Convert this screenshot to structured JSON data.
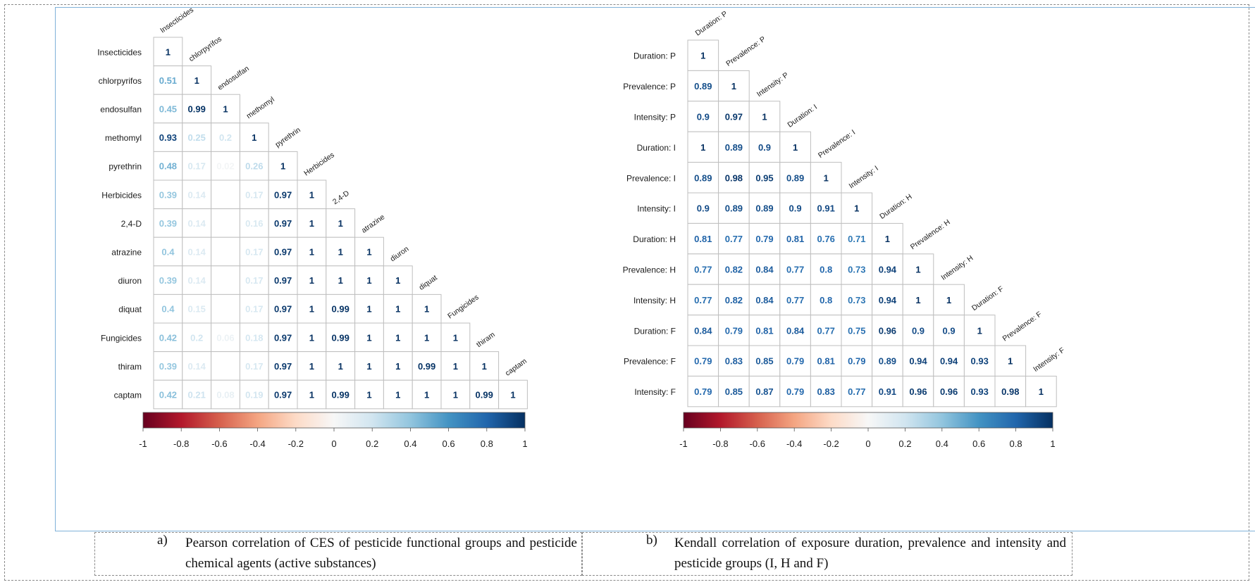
{
  "chart_data": [
    {
      "type": "heatmap",
      "method": "Pearson",
      "shape": "lower-triangle",
      "variables": [
        "Insecticides",
        "chlorpyrifos",
        "endosulfan",
        "methomyl",
        "pyrethrin",
        "Herbicides",
        "2,4-D",
        "atrazine",
        "diuron",
        "diquat",
        "Fungicides",
        "thiram",
        "captam"
      ],
      "matrix": [
        [
          1
        ],
        [
          0.51,
          1
        ],
        [
          0.45,
          0.99,
          1
        ],
        [
          0.93,
          0.25,
          0.2,
          1
        ],
        [
          0.48,
          0.17,
          0.02,
          0.26,
          1
        ],
        [
          0.39,
          0.14,
          null,
          0.17,
          0.97,
          1
        ],
        [
          0.39,
          0.14,
          null,
          0.16,
          0.97,
          1,
          1
        ],
        [
          0.4,
          0.14,
          null,
          0.17,
          0.97,
          1,
          1,
          1
        ],
        [
          0.39,
          0.14,
          null,
          0.17,
          0.97,
          1,
          1,
          1,
          1
        ],
        [
          0.4,
          0.15,
          null,
          0.17,
          0.97,
          1,
          0.99,
          1,
          1,
          1
        ],
        [
          0.42,
          0.2,
          0.06,
          0.18,
          0.97,
          1,
          0.99,
          1,
          1,
          1,
          1
        ],
        [
          0.39,
          0.14,
          null,
          0.17,
          0.97,
          1,
          1,
          1,
          1,
          0.99,
          1,
          1
        ],
        [
          0.42,
          0.21,
          0.08,
          0.19,
          0.97,
          1,
          0.99,
          1,
          1,
          1,
          1,
          0.99,
          1
        ]
      ],
      "colorbar": {
        "ticks": [
          "-1",
          "-0.8",
          "-0.6",
          "-0.4",
          "-0.2",
          "0",
          "0.2",
          "0.4",
          "0.6",
          "0.8",
          "1"
        ],
        "range": [
          -1,
          1
        ]
      },
      "caption_marker": "a)",
      "caption": "Pearson correlation of CES of pesticide functional groups and pesticide chemical agents (active substances)"
    },
    {
      "type": "heatmap",
      "method": "Kendall",
      "shape": "lower-triangle",
      "row_labels": [
        "Duration: P",
        "Prevalence: P",
        "Intensity: P",
        "Duration: I",
        "Prevalence: I",
        "Intensity: I",
        "Duration: H",
        "Prevalence: H",
        "Intensity: H",
        "Duration: F",
        "Prevalence: F",
        "Intensity: F"
      ],
      "column_labels": [
        "Duration: P",
        "Prevalence: P",
        "Intensity: P",
        "Duration: I",
        "Prevalence: I",
        "Intensity: I",
        "Duration: H",
        "Prevalence: H",
        "Intensity: H",
        "Duration: F",
        "Prevalence: F",
        "Intensity: F"
      ],
      "matrix": [
        [
          1
        ],
        [
          0.89,
          1
        ],
        [
          0.9,
          0.97,
          1
        ],
        [
          1,
          0.89,
          0.9,
          1
        ],
        [
          0.89,
          0.98,
          0.95,
          0.89,
          1
        ],
        [
          0.9,
          0.89,
          0.89,
          0.9,
          0.91,
          1
        ],
        [
          0.81,
          0.77,
          0.79,
          0.81,
          0.76,
          0.71,
          1
        ],
        [
          0.77,
          0.82,
          0.84,
          0.77,
          0.8,
          0.73,
          0.94,
          1
        ],
        [
          0.77,
          0.82,
          0.84,
          0.77,
          0.8,
          0.73,
          0.94,
          1,
          1
        ],
        [
          0.84,
          0.79,
          0.81,
          0.84,
          0.77,
          0.75,
          0.96,
          0.9,
          0.9,
          1
        ],
        [
          0.79,
          0.83,
          0.85,
          0.79,
          0.81,
          0.79,
          0.89,
          0.94,
          0.94,
          0.93,
          1
        ],
        [
          0.79,
          0.85,
          0.87,
          0.79,
          0.83,
          0.77,
          0.91,
          0.96,
          0.96,
          0.93,
          0.98,
          1
        ]
      ],
      "colorbar": {
        "ticks": [
          "-1",
          "-0.8",
          "-0.6",
          "-0.4",
          "-0.2",
          "0",
          "0.2",
          "0.4",
          "0.6",
          "0.8",
          "1"
        ],
        "range": [
          -1,
          1
        ]
      },
      "caption_marker": "b)",
      "caption": "Kendall correlation of exposure duration, prevalence and intensity and pesticide groups (I, H and F)"
    }
  ],
  "colors": {
    "scale_low": "#67001f",
    "scale_mid": "#f7f7f7",
    "scale_high": "#053061",
    "grid": "#bfbfbf",
    "frame": "#7fb1d9"
  }
}
